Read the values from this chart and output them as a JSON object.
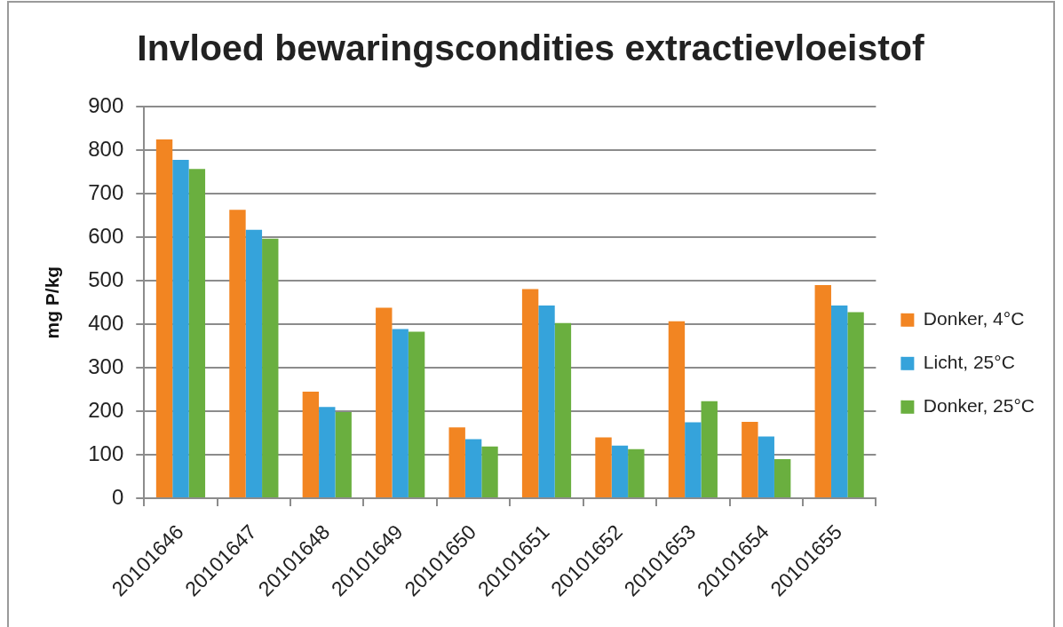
{
  "chart_data": {
    "type": "bar",
    "title": "Invloed bewaringscondities extractievloeistof",
    "ylabel": "mg P/kg",
    "categories": [
      "20101646",
      "20101647",
      "20101648",
      "20101649",
      "20101650",
      "20101651",
      "20101652",
      "20101653",
      "20101654",
      "20101655"
    ],
    "series": [
      {
        "name": "Donker, 4°C",
        "color": "#f28522",
        "values": [
          825,
          663,
          245,
          438,
          163,
          481,
          140,
          407,
          176,
          490
        ]
      },
      {
        "name": "Licht, 25°C",
        "color": "#35a3db",
        "values": [
          778,
          617,
          210,
          389,
          136,
          443,
          121,
          175,
          142,
          443
        ]
      },
      {
        "name": "Donker, 25°C",
        "color": "#6aaf3f",
        "values": [
          757,
          597,
          198,
          383,
          119,
          403,
          113,
          223,
          90,
          428
        ]
      }
    ],
    "ylim": [
      0,
      900
    ],
    "yticks": [
      0,
      100,
      200,
      300,
      400,
      500,
      600,
      700,
      800,
      900
    ],
    "grid": "y",
    "legend": "right"
  }
}
